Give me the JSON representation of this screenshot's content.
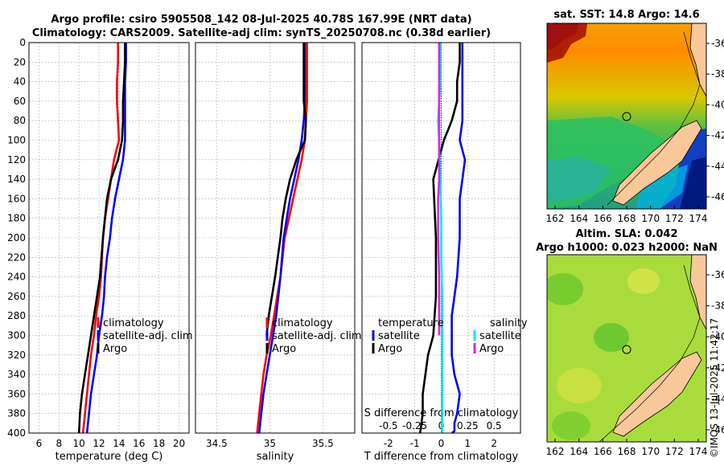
{
  "titles": {
    "line1": "Argo profile: csiro 5905508_142 08-Jul-2025 40.78S 167.99E (NRT data)",
    "line2": "Climatology: CARS2009. Satellite-adj clim: synTS_20250708.nc (0.38d earlier)"
  },
  "colors": {
    "argo": "#000000",
    "climatology": "#ff0000",
    "satellite": "#0000ff",
    "satellite_s": "#00e5ff",
    "argo_s": "#e020e0",
    "land": "#f9c89a"
  },
  "map_sst": {
    "title": "sat. SST: 14.8 Argo: 14.6",
    "xticks": [
      "162",
      "164",
      "166",
      "168",
      "170",
      "172",
      "174"
    ],
    "yticks": [
      "-36",
      "-38",
      "-40",
      "-42",
      "-44",
      "-46"
    ]
  },
  "map_sla": {
    "title1": "Altim. SLA: 0.042",
    "title2": "Argo h1000: 0.023 h2000: NaN",
    "xticks": [
      "162",
      "164",
      "166",
      "168",
      "170",
      "172",
      "174"
    ],
    "yticks": [
      "-36",
      "-38",
      "-40",
      "-42",
      "-44",
      "-46"
    ]
  },
  "watermark": "©IMOS 13-Jul-2025 11:42:17",
  "legend_profile": {
    "climatology": "climatology",
    "satellite": "satellite-adj. clim",
    "argo": "Argo"
  },
  "legend_diff": {
    "temp_header": "temperature",
    "sal_header": "salinity",
    "satellite": "satellite",
    "argo": "Argo"
  },
  "chart_data": [
    {
      "type": "line",
      "name": "temperature profile",
      "xlabel": "temperature (deg C)",
      "ylabel": "",
      "xlim": [
        5,
        21
      ],
      "ylim": [
        0,
        400
      ],
      "xticks": [
        6,
        8,
        10,
        12,
        14,
        16,
        18,
        20
      ],
      "yticks": [
        0,
        20,
        40,
        60,
        80,
        100,
        120,
        140,
        160,
        180,
        200,
        220,
        240,
        260,
        280,
        300,
        320,
        340,
        360,
        380,
        400
      ],
      "series": [
        {
          "name": "climatology",
          "x": [
            13.9,
            13.9,
            13.8,
            13.8,
            13.9,
            14.0,
            13.5,
            13.2,
            12.9,
            12.6,
            12.4,
            12.2,
            12.0,
            11.7,
            11.5,
            11.2,
            11.0,
            10.8,
            10.6,
            10.4
          ],
          "y": [
            0,
            20,
            40,
            60,
            80,
            100,
            120,
            140,
            160,
            180,
            200,
            240,
            260,
            280,
            300,
            320,
            340,
            360,
            380,
            400
          ]
        },
        {
          "name": "satellite-adj. clim",
          "x": [
            14.7,
            14.7,
            14.6,
            14.6,
            14.6,
            14.6,
            14.4,
            14.0,
            13.6,
            13.3,
            13.1,
            12.8,
            12.6,
            12.5,
            12.3,
            12.0,
            11.8,
            11.5,
            11.2,
            11.0,
            10.8
          ],
          "y": [
            0,
            20,
            40,
            60,
            80,
            100,
            120,
            140,
            160,
            180,
            200,
            220,
            240,
            260,
            280,
            300,
            320,
            340,
            360,
            380,
            400
          ]
        },
        {
          "name": "Argo",
          "x": [
            14.6,
            14.6,
            14.5,
            14.4,
            14.4,
            14.3,
            13.9,
            13.2,
            12.8,
            12.6,
            12.4,
            12.1,
            11.8,
            11.5,
            11.2,
            10.9,
            10.6,
            10.3,
            10.1,
            10.0
          ],
          "y": [
            0,
            20,
            40,
            60,
            80,
            100,
            120,
            140,
            160,
            180,
            200,
            240,
            260,
            280,
            300,
            320,
            340,
            360,
            380,
            400
          ]
        }
      ]
    },
    {
      "type": "line",
      "name": "salinity profile",
      "xlabel": "salinity",
      "xlim": [
        34.3,
        35.8
      ],
      "ylim": [
        0,
        400
      ],
      "xticks": [
        34.5,
        35,
        35.5
      ],
      "xticklabels": [
        "34.5",
        "35",
        "35.5"
      ],
      "series": [
        {
          "name": "climatology",
          "x": [
            35.35,
            35.35,
            35.35,
            35.35,
            35.34,
            35.33,
            35.3,
            35.26,
            35.22,
            35.18,
            35.14,
            35.1,
            35.07,
            35.04,
            35.01,
            34.97,
            34.94,
            34.92,
            34.9,
            34.88
          ],
          "y": [
            0,
            20,
            40,
            60,
            80,
            100,
            120,
            140,
            160,
            180,
            200,
            240,
            260,
            280,
            300,
            320,
            340,
            360,
            380,
            400
          ]
        },
        {
          "name": "satellite-adj. clim",
          "x": [
            35.33,
            35.33,
            35.33,
            35.33,
            35.32,
            35.3,
            35.27,
            35.23,
            35.19,
            35.16,
            35.13,
            35.1,
            35.08,
            35.06,
            35.03,
            35.0,
            34.97,
            34.94,
            34.92,
            34.9
          ],
          "y": [
            0,
            20,
            40,
            60,
            80,
            100,
            120,
            140,
            160,
            180,
            200,
            240,
            260,
            280,
            300,
            320,
            340,
            360,
            380,
            400
          ]
        },
        {
          "name": "Argo",
          "x": [
            35.32,
            35.32,
            35.32,
            35.32,
            35.34,
            35.33,
            35.25,
            35.19,
            35.15,
            35.12,
            35.1,
            35.05,
            35.02,
            34.99,
            34.97
          ],
          "y": [
            0,
            20,
            40,
            60,
            80,
            100,
            120,
            140,
            160,
            180,
            200,
            240,
            260,
            280,
            300
          ]
        }
      ]
    },
    {
      "type": "line",
      "name": "difference from climatology",
      "xlabel": "T difference from climatology",
      "xlabel_top": "S difference from climatology",
      "xlim": [
        -3,
        3
      ],
      "ylim": [
        0,
        400
      ],
      "xticks": [
        -2,
        -1,
        0,
        1,
        2
      ],
      "xticklabels": [
        "-2",
        "-1",
        "0",
        "1",
        "2"
      ],
      "sticks": [
        -0.5,
        -0.25,
        0,
        0.25,
        0.5
      ],
      "sticklabels": [
        "-0.5",
        "-0.25",
        "0",
        "0.25",
        "0.5"
      ],
      "series": [
        {
          "name": "T satellite",
          "x": [
            0.8,
            0.8,
            0.8,
            0.8,
            0.8,
            0.7,
            0.9,
            0.8,
            0.7,
            0.7,
            0.6,
            0.5,
            0.4,
            0.4,
            0.4,
            0.5,
            0.7,
            0.6,
            0.5,
            0.5,
            0.5,
            0.4
          ],
          "y": [
            0,
            20,
            40,
            60,
            80,
            100,
            120,
            140,
            160,
            200,
            240,
            260,
            280,
            300,
            320,
            340,
            360,
            380,
            390,
            395,
            398,
            400
          ]
        },
        {
          "name": "T Argo",
          "x": [
            0.7,
            0.7,
            0.6,
            0.6,
            0.4,
            0.1,
            -0.1,
            -0.3,
            -0.2,
            -0.2,
            -0.3,
            -0.5,
            -0.6,
            -0.7,
            -0.7,
            -0.8
          ],
          "y": [
            0,
            20,
            40,
            60,
            80,
            100,
            120,
            140,
            200,
            260,
            300,
            320,
            340,
            360,
            380,
            400
          ]
        },
        {
          "name": "S satellite",
          "x": [
            -0.01,
            -0.01,
            -0.01,
            -0.02,
            -0.03,
            -0.02,
            -0.01,
            0.0,
            0.0,
            0.01,
            0.01,
            0.01
          ],
          "y": [
            0,
            20,
            40,
            60,
            80,
            100,
            140,
            180,
            220,
            260,
            300,
            400
          ]
        },
        {
          "name": "S Argo",
          "x": [
            -0.02,
            -0.02,
            -0.02,
            -0.02,
            -0.02,
            -0.02,
            -0.03,
            -0.03,
            -0.03,
            -0.02,
            -0.02,
            -0.02,
            -0.02
          ],
          "y": [
            0,
            20,
            60,
            100,
            120,
            140,
            160,
            180,
            200,
            240,
            260,
            280,
            300
          ]
        }
      ]
    }
  ]
}
